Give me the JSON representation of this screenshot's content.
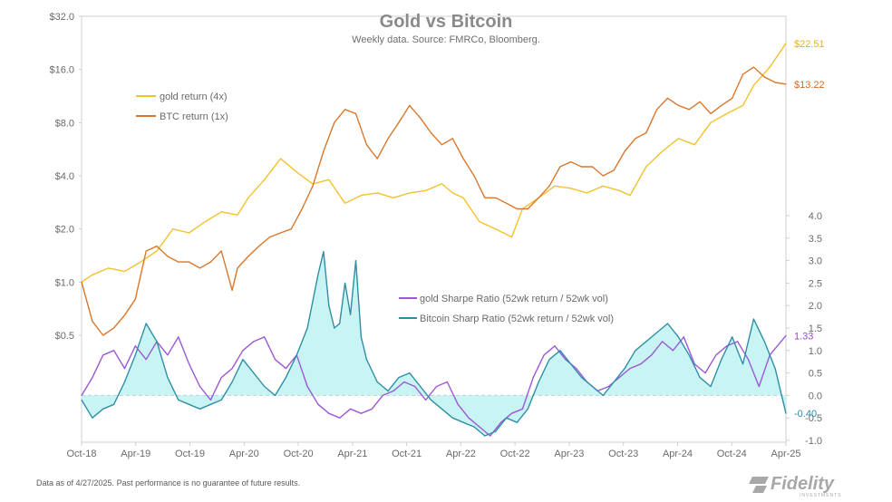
{
  "chart_data": {
    "type": "line",
    "title": "Gold vs Bitcoin",
    "subtitle": "Weekly data.  Source: FMRCo, Bloomberg.",
    "x_tick_labels": [
      "Oct-18",
      "Apr-19",
      "Oct-19",
      "Apr-20",
      "Oct-20",
      "Apr-21",
      "Oct-21",
      "Apr-22",
      "Oct-22",
      "Apr-23",
      "Oct-23",
      "Apr-24",
      "Oct-24",
      "Apr-25"
    ],
    "x_range": [
      "Oct-18",
      "Apr-25"
    ],
    "left_axis": {
      "scale": "log2",
      "ticks": [
        "$0.5",
        "$1.0",
        "$2.0",
        "$4.0",
        "$8.0",
        "$16.0",
        "$32.0"
      ],
      "ylim": [
        0.5,
        32
      ]
    },
    "right_axis": {
      "scale": "linear",
      "ticks": [
        "-1.0",
        "-0.5",
        "0.0",
        "0.5",
        "1.0",
        "1.5",
        "2.0",
        "2.5",
        "3.0",
        "3.5",
        "4.0"
      ],
      "ylim": [
        -1.0,
        4.0
      ]
    },
    "grid": false,
    "legend_top": [
      "gold return (4x)",
      "BTC return (1x)"
    ],
    "legend_bottom": [
      "gold Sharpe Ratio (52wk return / 52wk vol)",
      "Bitcoin Sharp Ratio (52wk return / 52wk vol)"
    ],
    "colors": {
      "gold": "#f2c22e",
      "btc": "#d9782d",
      "gold_sharpe": "#9b59d6",
      "btc_sharpe": "#2f8fa6",
      "btc_fill": "#bff2f2"
    },
    "series": [
      {
        "name": "gold return (4x)",
        "axis": "left",
        "end_label": "$22.51",
        "x": [
          2018.75,
          2018.85,
          2019.0,
          2019.15,
          2019.3,
          2019.45,
          2019.6,
          2019.75,
          2019.9,
          2020.05,
          2020.2,
          2020.3,
          2020.45,
          2020.6,
          2020.75,
          2020.9,
          2021.05,
          2021.2,
          2021.35,
          2021.5,
          2021.65,
          2021.8,
          2021.95,
          2022.1,
          2022.2,
          2022.3,
          2022.45,
          2022.6,
          2022.75,
          2022.85,
          2023.0,
          2023.15,
          2023.3,
          2023.45,
          2023.6,
          2023.75,
          2023.85,
          2024.0,
          2024.15,
          2024.3,
          2024.45,
          2024.6,
          2024.75,
          2024.9,
          2025.0,
          2025.15,
          2025.3
        ],
        "values": [
          1.0,
          1.1,
          1.2,
          1.15,
          1.3,
          1.5,
          2.0,
          1.9,
          2.2,
          2.5,
          2.4,
          3.0,
          3.8,
          5.0,
          4.2,
          3.6,
          3.8,
          2.8,
          3.1,
          3.2,
          3.0,
          3.2,
          3.3,
          3.6,
          3.2,
          3.0,
          2.2,
          2.0,
          1.8,
          2.6,
          3.0,
          3.5,
          3.4,
          3.2,
          3.5,
          3.3,
          3.1,
          4.5,
          5.5,
          6.5,
          6.0,
          8.0,
          9.0,
          10.0,
          13.0,
          16.5,
          22.51
        ]
      },
      {
        "name": "BTC return (1x)",
        "axis": "left",
        "end_label": "$13.22",
        "x": [
          2018.75,
          2018.85,
          2018.95,
          2019.05,
          2019.15,
          2019.25,
          2019.35,
          2019.45,
          2019.55,
          2019.65,
          2019.75,
          2019.85,
          2019.95,
          2020.05,
          2020.15,
          2020.2,
          2020.3,
          2020.4,
          2020.5,
          2020.6,
          2020.7,
          2020.8,
          2020.9,
          2021.0,
          2021.1,
          2021.2,
          2021.3,
          2021.4,
          2021.5,
          2021.6,
          2021.7,
          2021.8,
          2021.9,
          2022.0,
          2022.1,
          2022.2,
          2022.3,
          2022.4,
          2022.5,
          2022.6,
          2022.7,
          2022.8,
          2022.9,
          2023.0,
          2023.1,
          2023.2,
          2023.3,
          2023.4,
          2023.5,
          2023.6,
          2023.7,
          2023.8,
          2023.9,
          2024.0,
          2024.1,
          2024.2,
          2024.3,
          2024.4,
          2024.5,
          2024.6,
          2024.7,
          2024.8,
          2024.9,
          2025.0,
          2025.1,
          2025.2,
          2025.3
        ],
        "values": [
          1.0,
          0.6,
          0.5,
          0.55,
          0.65,
          0.8,
          1.5,
          1.6,
          1.4,
          1.3,
          1.3,
          1.2,
          1.3,
          1.5,
          0.9,
          1.2,
          1.4,
          1.6,
          1.8,
          1.9,
          2.0,
          2.6,
          3.5,
          5.5,
          8.0,
          9.5,
          9.0,
          6.0,
          5.0,
          6.5,
          8.0,
          10.0,
          8.5,
          7.0,
          6.0,
          6.5,
          5.0,
          4.0,
          3.0,
          3.0,
          2.8,
          2.6,
          2.6,
          3.0,
          3.5,
          4.5,
          4.8,
          4.5,
          4.5,
          4.0,
          4.3,
          5.5,
          6.5,
          7.0,
          9.5,
          11.0,
          10.0,
          9.5,
          10.5,
          9.0,
          10.0,
          11.0,
          15.0,
          16.5,
          14.5,
          13.5,
          13.22
        ]
      },
      {
        "name": "gold Sharpe Ratio (52wk return / 52wk vol)",
        "axis": "right",
        "end_label": "1.33",
        "x": [
          2018.75,
          2018.85,
          2018.95,
          2019.05,
          2019.15,
          2019.25,
          2019.35,
          2019.45,
          2019.55,
          2019.65,
          2019.75,
          2019.85,
          2019.95,
          2020.05,
          2020.15,
          2020.25,
          2020.35,
          2020.45,
          2020.55,
          2020.65,
          2020.75,
          2020.85,
          2020.95,
          2021.05,
          2021.15,
          2021.25,
          2021.35,
          2021.45,
          2021.55,
          2021.65,
          2021.75,
          2021.85,
          2021.95,
          2022.05,
          2022.15,
          2022.25,
          2022.35,
          2022.45,
          2022.55,
          2022.65,
          2022.75,
          2022.85,
          2022.95,
          2023.05,
          2023.15,
          2023.25,
          2023.35,
          2023.45,
          2023.55,
          2023.65,
          2023.75,
          2023.85,
          2023.95,
          2024.05,
          2024.15,
          2024.25,
          2024.35,
          2024.45,
          2024.55,
          2024.65,
          2024.75,
          2024.85,
          2024.95,
          2025.05,
          2025.15,
          2025.3
        ],
        "values": [
          0.0,
          0.4,
          0.9,
          1.0,
          0.6,
          1.1,
          0.8,
          1.2,
          0.9,
          1.3,
          0.7,
          0.2,
          -0.1,
          0.4,
          0.6,
          1.0,
          1.2,
          1.3,
          0.8,
          0.6,
          0.9,
          0.2,
          -0.2,
          -0.4,
          -0.5,
          -0.3,
          -0.4,
          -0.3,
          0.0,
          0.1,
          0.3,
          0.2,
          -0.1,
          0.2,
          0.3,
          -0.2,
          -0.5,
          -0.7,
          -0.9,
          -0.6,
          -0.4,
          -0.3,
          0.4,
          0.9,
          1.1,
          0.8,
          0.6,
          0.3,
          0.1,
          0.2,
          0.4,
          0.6,
          0.7,
          0.9,
          1.2,
          1.0,
          1.3,
          0.7,
          0.5,
          0.9,
          1.1,
          1.2,
          0.8,
          0.2,
          0.9,
          1.33
        ]
      },
      {
        "name": "Bitcoin Sharp Ratio (52wk return / 52wk vol)",
        "axis": "right",
        "end_label": "-0.40",
        "x": [
          2018.75,
          2018.85,
          2018.95,
          2019.05,
          2019.15,
          2019.25,
          2019.35,
          2019.45,
          2019.55,
          2019.65,
          2019.75,
          2019.85,
          2019.95,
          2020.05,
          2020.15,
          2020.25,
          2020.35,
          2020.45,
          2020.55,
          2020.65,
          2020.75,
          2020.85,
          2020.95,
          2021.0,
          2021.05,
          2021.1,
          2021.15,
          2021.2,
          2021.25,
          2021.3,
          2021.35,
          2021.4,
          2021.5,
          2021.6,
          2021.7,
          2021.8,
          2021.9,
          2022.0,
          2022.1,
          2022.2,
          2022.3,
          2022.4,
          2022.5,
          2022.6,
          2022.7,
          2022.8,
          2022.9,
          2023.0,
          2023.1,
          2023.2,
          2023.3,
          2023.4,
          2023.5,
          2023.6,
          2023.7,
          2023.8,
          2023.9,
          2024.0,
          2024.1,
          2024.2,
          2024.3,
          2024.4,
          2024.5,
          2024.6,
          2024.7,
          2024.8,
          2024.9,
          2025.0,
          2025.1,
          2025.2,
          2025.3
        ],
        "values": [
          -0.1,
          -0.5,
          -0.3,
          -0.2,
          0.3,
          0.9,
          1.6,
          1.2,
          0.4,
          -0.1,
          -0.2,
          -0.3,
          -0.2,
          -0.1,
          0.3,
          0.8,
          0.5,
          0.2,
          0.0,
          0.4,
          0.9,
          1.5,
          2.7,
          3.2,
          2.0,
          1.5,
          1.6,
          2.5,
          1.8,
          3.0,
          1.3,
          0.8,
          0.3,
          0.1,
          0.4,
          0.5,
          0.2,
          -0.1,
          -0.3,
          -0.5,
          -0.6,
          -0.7,
          -0.9,
          -0.8,
          -0.5,
          -0.6,
          -0.3,
          0.3,
          0.8,
          1.0,
          0.7,
          0.4,
          0.2,
          0.0,
          0.3,
          0.6,
          1.0,
          1.2,
          1.4,
          1.6,
          1.3,
          0.9,
          0.4,
          0.2,
          0.8,
          1.3,
          0.7,
          1.7,
          1.2,
          0.6,
          -0.4
        ]
      }
    ],
    "end_labels_colors": {
      "gold": "#e8b01c",
      "btc": "#d4691f",
      "gold_sharpe": "#a23fd0",
      "btc_sharpe": "#2b8aa3"
    }
  },
  "footer": {
    "note": "Data as of 4/27/2025. Past performance is no guarantee of future results."
  },
  "brand": {
    "logo_text": "Fidelity",
    "logo_sub": "INVESTMENTS"
  }
}
